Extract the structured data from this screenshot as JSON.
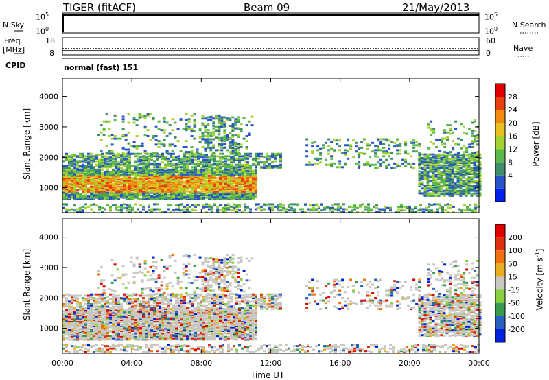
{
  "header": {
    "title": "TIGER (fitACF)",
    "beam": "Beam 09",
    "date": "21/May/2013"
  },
  "strips": {
    "nsky_label": "N.Sky",
    "nsearch_label": "N.Search",
    "nsky_ticks": [
      "10^5",
      "10^0"
    ],
    "nsky_ticks_right": [
      "10^5",
      "10^0"
    ],
    "freq_label_line1": "Freq.",
    "freq_label_line2": "[MHz]",
    "freq_ticks": [
      "18",
      "8"
    ],
    "nave_label": "Nave",
    "nave_ticks": [
      "60",
      "0"
    ],
    "cpid_label": "CPID",
    "cpid_value": "normal (fast) 151"
  },
  "chart_data": [
    {
      "type": "heatmap",
      "name": "power",
      "ylabel": "Slant Range [km]",
      "yticks": [
        1000,
        2000,
        3000,
        4000
      ],
      "ylim": [
        180,
        4600
      ],
      "xlim_hours": [
        0,
        24
      ],
      "colorbar_label": "Power [dB]",
      "colorbar_ticks": [
        "28",
        "24",
        "20",
        "16",
        "12",
        "8",
        "4"
      ],
      "colorbar_colors": [
        "#0022ee",
        "#2a55c8",
        "#3f8f6b",
        "#5ab84a",
        "#a4d233",
        "#e8c020",
        "#f08a10",
        "#e84010",
        "#e00000"
      ]
    },
    {
      "type": "heatmap",
      "name": "velocity",
      "ylabel": "Slant Range [km]",
      "yticks": [
        1000,
        2000,
        3000,
        4000
      ],
      "ylim": [
        180,
        4600
      ],
      "xlim_hours": [
        0,
        24
      ],
      "colorbar_label": "Velocity [m s^-1]",
      "colorbar_ticks": [
        "200",
        "100",
        "50",
        "15",
        "-15",
        "-50",
        "-100",
        "-200"
      ],
      "colorbar_colors": [
        "#0022dd",
        "#2860c0",
        "#3a9a50",
        "#88d040",
        "#c8c8c0",
        "#e8b020",
        "#f07010",
        "#e03010",
        "#e00000"
      ]
    }
  ],
  "xaxis": {
    "ticks": [
      "00:00",
      "04:00",
      "08:00",
      "12:00",
      "16:00",
      "20:00",
      "00:00"
    ],
    "label": "Time UT"
  }
}
